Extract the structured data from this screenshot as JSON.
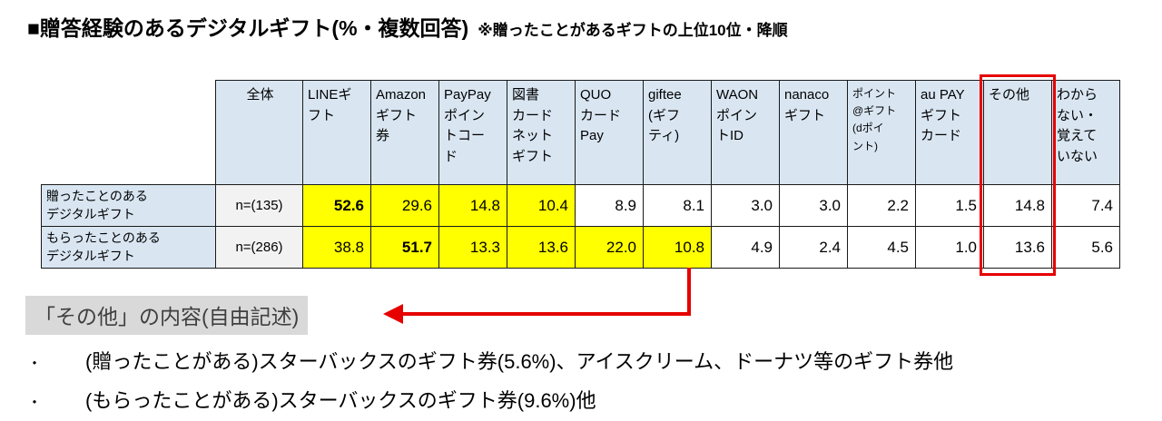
{
  "title": {
    "main": "■贈答経験のあるデジタルギフト(%・複数回答)",
    "note": "※贈ったことがあるギフトの上位10位・降順"
  },
  "table": {
    "header": {
      "overall": "全体",
      "columns": [
        {
          "label": "LINEギ\nフト"
        },
        {
          "label": "Amazon\nギフト\n券"
        },
        {
          "label": "PayPay\nポイン\nトコー\nド"
        },
        {
          "label": "図書\nカード\nネット\nギフト"
        },
        {
          "label": "QUO\nカード\nPay"
        },
        {
          "label": "giftee\n(ギフ\nティ)"
        },
        {
          "label": "WAON\nポイン\nトID"
        },
        {
          "label": "nanaco\nギフト"
        },
        {
          "label": "ポイント\n@ギフト\n(dポイ\nント)",
          "small": true
        },
        {
          "label": "au PAY\nギフト\nカード"
        },
        {
          "label": "その他",
          "outlined": true
        },
        {
          "label": "わから\nない・\n覚えて\nいない"
        }
      ]
    },
    "rows": [
      {
        "label": "贈ったことのある\nデジタルギフト",
        "n": "n=(135)",
        "cells": [
          {
            "v": "52.6",
            "hl": true,
            "b": true
          },
          {
            "v": "29.6",
            "hl": true
          },
          {
            "v": "14.8",
            "hl": true
          },
          {
            "v": "10.4",
            "hl": true
          },
          {
            "v": "8.9"
          },
          {
            "v": "8.1"
          },
          {
            "v": "3.0"
          },
          {
            "v": "3.0"
          },
          {
            "v": "2.2"
          },
          {
            "v": "1.5"
          },
          {
            "v": "14.8"
          },
          {
            "v": "7.4"
          }
        ]
      },
      {
        "label": "もらったことのある\nデジタルギフト",
        "n": "n=(286)",
        "cells": [
          {
            "v": "38.8",
            "hl": true
          },
          {
            "v": "51.7",
            "hl": true,
            "b": true
          },
          {
            "v": "13.3",
            "hl": true
          },
          {
            "v": "13.6",
            "hl": true
          },
          {
            "v": "22.0",
            "hl": true
          },
          {
            "v": "10.8",
            "hl": true
          },
          {
            "v": "4.9"
          },
          {
            "v": "2.4"
          },
          {
            "v": "4.5"
          },
          {
            "v": "1.0"
          },
          {
            "v": "13.6"
          },
          {
            "v": "5.6"
          }
        ]
      }
    ]
  },
  "callout": {
    "label": "「その他」の内容(自由記述)"
  },
  "notes": [
    {
      "bullet": "・",
      "text": "(贈ったことがある)スターバックスのギフト券(5.6%)、アイスクリーム、ドーナツ等のギフト券他"
    },
    {
      "bullet": "・",
      "text": "(もらったことがある)スターバックスのギフト券(9.6%)他"
    }
  ],
  "colors": {
    "header_bg": "#d9e6f2",
    "n_bg": "#f2f2f2",
    "highlight": "#ffff00",
    "accent_red": "#e60000",
    "callout_bg": "#d9d9d9",
    "border_color": "#1a1a1a"
  },
  "chart_data": {
    "type": "table",
    "title": "贈答経験のあるデジタルギフト(%・複数回答)",
    "subtitle": "※贈ったことがあるギフトの上位10位・降順",
    "unit": "%",
    "categories": [
      "LINEギフト",
      "Amazonギフト券",
      "PayPayポイントコード",
      "図書カードネットギフト",
      "QUOカードPay",
      "giftee(ギフティ)",
      "WAONポイントID",
      "nanacoギフト",
      "ポイント@ギフト(dポイント)",
      "au PAYギフトカード",
      "その他",
      "わからない・覚えていない"
    ],
    "series": [
      {
        "name": "贈ったことのあるデジタルギフト",
        "n": 135,
        "values": [
          52.6,
          29.6,
          14.8,
          10.4,
          8.9,
          8.1,
          3.0,
          3.0,
          2.2,
          1.5,
          14.8,
          7.4
        ]
      },
      {
        "name": "もらったことのあるデジタルギフト",
        "n": 286,
        "values": [
          38.8,
          51.7,
          13.3,
          13.6,
          22.0,
          10.8,
          4.9,
          2.4,
          4.5,
          1.0,
          13.6,
          5.6
        ]
      }
    ],
    "annotations": [
      "「その他」の内容(自由記述)",
      "(贈ったことがある)スターバックスのギフト券(5.6%)、アイスクリーム、ドーナツ等のギフト券他",
      "(もらったことがある)スターバックスのギフト券(9.6%)他"
    ]
  }
}
